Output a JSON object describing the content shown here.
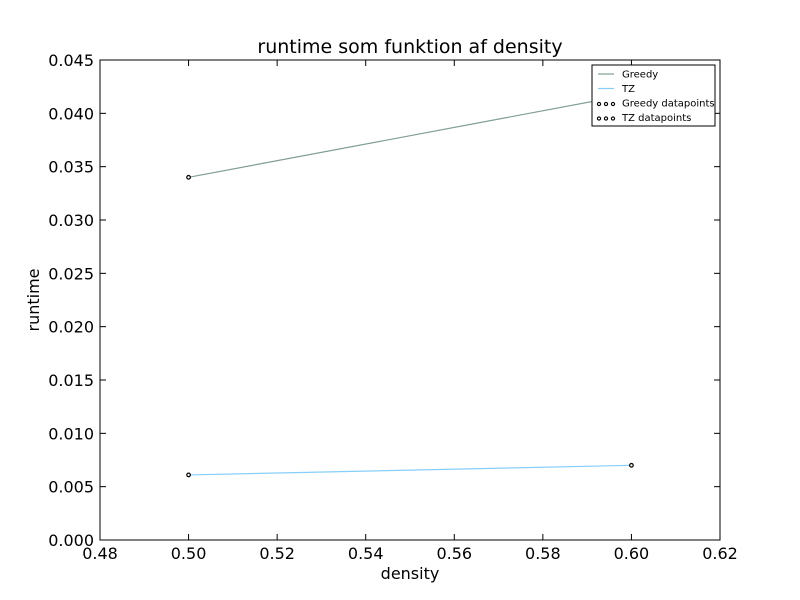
{
  "chart_data": {
    "type": "line",
    "title": "runtime som funktion af density",
    "xlabel": "density",
    "ylabel": "runtime",
    "xlim": [
      0.48,
      0.62
    ],
    "ylim": [
      0.0,
      0.045
    ],
    "xticks": [
      "0.48",
      "0.50",
      "0.52",
      "0.54",
      "0.56",
      "0.58",
      "0.60",
      "0.62"
    ],
    "yticks": [
      "0.000",
      "0.005",
      "0.010",
      "0.015",
      "0.020",
      "0.025",
      "0.030",
      "0.035",
      "0.040",
      "0.045"
    ],
    "grid": false,
    "legend_position": "top-right",
    "series": [
      {
        "name": "Greedy",
        "kind": "line",
        "color": "#7f9f8f",
        "x": [
          0.5,
          0.6
        ],
        "y": [
          0.034,
          0.0418
        ]
      },
      {
        "name": "TZ",
        "kind": "line",
        "color": "#87cefa",
        "x": [
          0.5,
          0.6
        ],
        "y": [
          0.0061,
          0.007
        ]
      },
      {
        "name": "Greedy datapoints",
        "kind": "scatter",
        "color": "#000000",
        "x": [
          0.5,
          0.6
        ],
        "y": [
          0.034,
          0.0418
        ]
      },
      {
        "name": "TZ datapoints",
        "kind": "scatter",
        "color": "#000000",
        "x": [
          0.5,
          0.6
        ],
        "y": [
          0.0061,
          0.007
        ]
      }
    ]
  }
}
